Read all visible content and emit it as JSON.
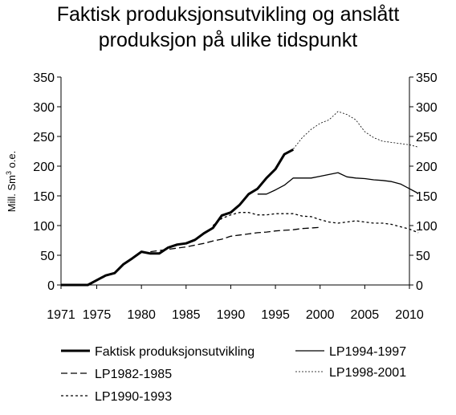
{
  "chart_data": {
    "type": "line",
    "title_line1": "Faktisk produksjonsutvikling og anslått",
    "title_line2": "produksjon på ulike tidspunkt",
    "ylabel_main": "Mill. Sm",
    "ylabel_sup": "3",
    "ylabel_tail": " o.e.",
    "xlim": [
      1971,
      2010
    ],
    "ylim": [
      0,
      350
    ],
    "x_ticks": [
      1971,
      1975,
      1980,
      1985,
      1990,
      1995,
      2000,
      2005,
      2010
    ],
    "y_ticks": [
      0,
      50,
      100,
      150,
      200,
      250,
      300,
      350
    ],
    "grid": false,
    "legend_position": "bottom",
    "series": [
      {
        "name": "Faktisk produksjonsutvikling",
        "style": "thick",
        "points": [
          [
            1971,
            0
          ],
          [
            1972,
            0
          ],
          [
            1973,
            0
          ],
          [
            1974,
            0
          ],
          [
            1975,
            8
          ],
          [
            1976,
            16
          ],
          [
            1977,
            20
          ],
          [
            1978,
            35
          ],
          [
            1979,
            45
          ],
          [
            1980,
            56
          ],
          [
            1981,
            53
          ],
          [
            1982,
            53
          ],
          [
            1983,
            63
          ],
          [
            1984,
            68
          ],
          [
            1985,
            70
          ],
          [
            1986,
            76
          ],
          [
            1987,
            87
          ],
          [
            1988,
            96
          ],
          [
            1989,
            117
          ],
          [
            1990,
            122
          ],
          [
            1991,
            135
          ],
          [
            1992,
            153
          ],
          [
            1993,
            162
          ],
          [
            1994,
            180
          ],
          [
            1995,
            195
          ],
          [
            1996,
            220
          ],
          [
            1997,
            228
          ]
        ]
      },
      {
        "name": "LP1994-1997",
        "style": "solid",
        "points": [
          [
            1993,
            153
          ],
          [
            1994,
            153
          ],
          [
            1995,
            160
          ],
          [
            1996,
            168
          ],
          [
            1997,
            180
          ],
          [
            1998,
            180
          ],
          [
            1999,
            180
          ],
          [
            2000,
            183
          ],
          [
            2001,
            186
          ],
          [
            2002,
            189
          ],
          [
            2003,
            182
          ],
          [
            2004,
            180
          ],
          [
            2005,
            179
          ],
          [
            2006,
            177
          ],
          [
            2007,
            176
          ],
          [
            2008,
            174
          ],
          [
            2009,
            170
          ],
          [
            2010,
            162
          ],
          [
            2011,
            154
          ]
        ]
      },
      {
        "name": "LP1982-1985",
        "style": "dashed",
        "points": [
          [
            1981,
            56
          ],
          [
            1982,
            58
          ],
          [
            1983,
            60
          ],
          [
            1984,
            62
          ],
          [
            1985,
            64
          ],
          [
            1986,
            67
          ],
          [
            1987,
            70
          ],
          [
            1988,
            74
          ],
          [
            1989,
            77
          ],
          [
            1990,
            82
          ],
          [
            1991,
            84
          ],
          [
            1992,
            86
          ],
          [
            1993,
            88
          ],
          [
            1994,
            89
          ],
          [
            1995,
            91
          ],
          [
            1996,
            92
          ],
          [
            1997,
            93
          ],
          [
            1998,
            95
          ],
          [
            1999,
            96
          ],
          [
            2000,
            97
          ]
        ]
      },
      {
        "name": "LP1998-2001",
        "style": "dotted",
        "points": [
          [
            1997,
            229
          ],
          [
            1998,
            248
          ],
          [
            1999,
            262
          ],
          [
            2000,
            272
          ],
          [
            2001,
            278
          ],
          [
            2002,
            292
          ],
          [
            2003,
            287
          ],
          [
            2004,
            278
          ],
          [
            2005,
            258
          ],
          [
            2006,
            248
          ],
          [
            2007,
            242
          ],
          [
            2008,
            240
          ],
          [
            2009,
            238
          ],
          [
            2010,
            236
          ],
          [
            2011,
            232
          ]
        ]
      },
      {
        "name": "LP1990-1993",
        "style": "short-dash",
        "points": [
          [
            1988,
            100
          ],
          [
            1989,
            112
          ],
          [
            1990,
            118
          ],
          [
            1991,
            122
          ],
          [
            1992,
            122
          ],
          [
            1993,
            118
          ],
          [
            1994,
            118
          ],
          [
            1995,
            120
          ],
          [
            1996,
            120
          ],
          [
            1997,
            120
          ],
          [
            1998,
            116
          ],
          [
            1999,
            115
          ],
          [
            2000,
            110
          ],
          [
            2001,
            106
          ],
          [
            2002,
            104
          ],
          [
            2003,
            106
          ],
          [
            2004,
            108
          ],
          [
            2005,
            106
          ],
          [
            2006,
            104
          ],
          [
            2007,
            104
          ],
          [
            2008,
            102
          ],
          [
            2009,
            98
          ],
          [
            2010,
            94
          ],
          [
            2011,
            88
          ]
        ]
      }
    ]
  }
}
